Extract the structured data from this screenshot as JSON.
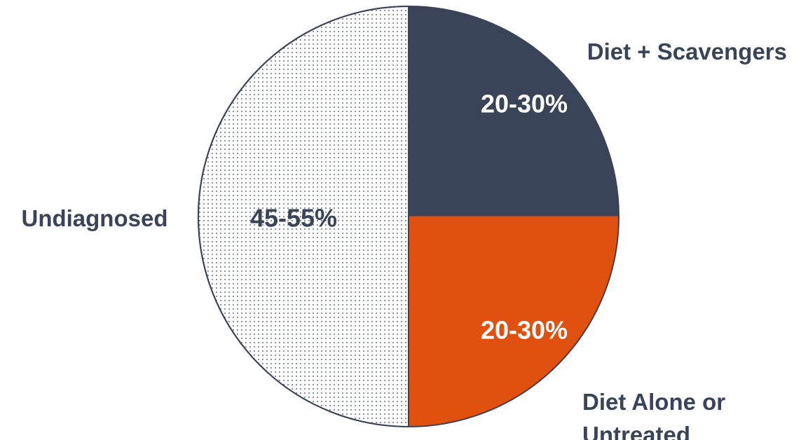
{
  "chart_data": {
    "type": "pie",
    "slices": [
      {
        "label_lines": [
          "Diet + Scavengers"
        ],
        "value_label": "20-30%",
        "value": 25,
        "color": "#3a4459",
        "pattern": "solid",
        "value_label_color": "#ffffff"
      },
      {
        "label_lines": [
          "Diet Alone or",
          "Untreated"
        ],
        "value_label": "20-30%",
        "value": 25,
        "color": "#e0500f",
        "pattern": "solid",
        "value_label_color": "#ffffff"
      },
      {
        "label_lines": [
          "Undiagnosed"
        ],
        "value_label": "45-55%",
        "value": 50,
        "color": "#ffffff",
        "pattern": "dots",
        "value_label_color": "#3a4459"
      }
    ],
    "start_angle": "12 o'clock",
    "direction": "clockwise",
    "outline_color": "#3a4459"
  }
}
